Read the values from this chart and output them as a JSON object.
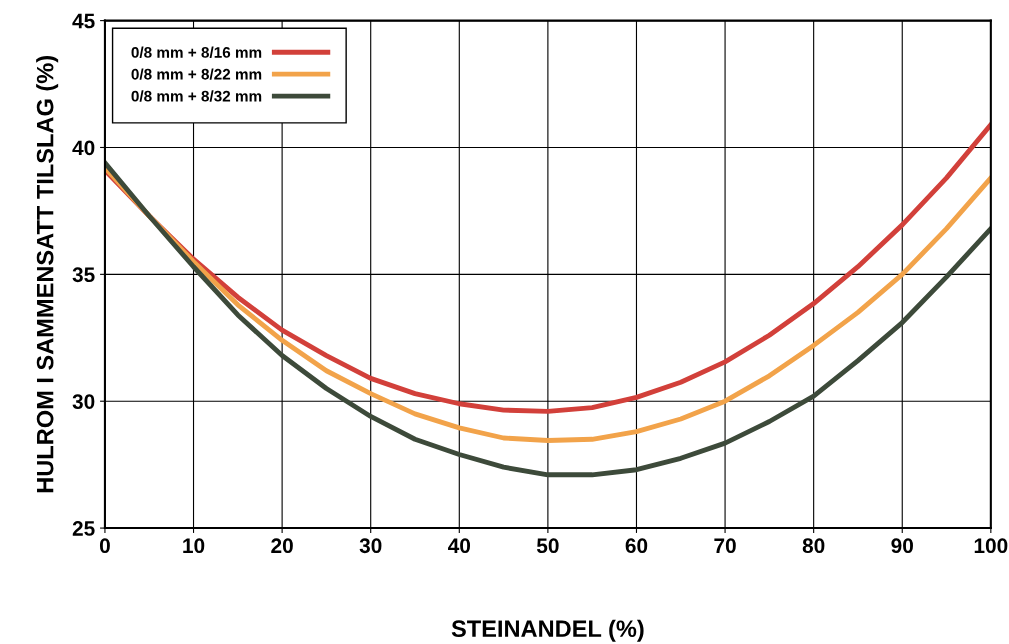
{
  "chart_data": {
    "type": "line",
    "xlabel": "STEINANDEL (%)",
    "ylabel": "HULROM I SAMMENSATT TILSLAG (%)",
    "x": [
      0,
      5,
      10,
      15,
      20,
      25,
      30,
      35,
      40,
      45,
      50,
      55,
      60,
      65,
      70,
      75,
      80,
      85,
      90,
      95,
      100
    ],
    "xlim": [
      0,
      100
    ],
    "xticks": [
      0,
      10,
      20,
      30,
      40,
      50,
      60,
      70,
      80,
      90,
      100
    ],
    "ylim": [
      25,
      45
    ],
    "yticks": [
      25,
      30,
      35,
      40,
      45
    ],
    "grid": true,
    "legend": "top left",
    "marker": "none",
    "line_style": "solid",
    "series": [
      {
        "name": "0/8 mm + 8/16 mm",
        "color": "#d2403a",
        "values": [
          39.1,
          37.3,
          35.6,
          34.1,
          32.8,
          31.8,
          30.9,
          30.3,
          29.9,
          29.65,
          29.6,
          29.75,
          30.15,
          30.75,
          31.55,
          32.6,
          33.85,
          35.3,
          36.95,
          38.8,
          40.9
        ]
      },
      {
        "name": "0/8 mm + 8/22 mm",
        "color": "#f2a34a",
        "values": [
          39.2,
          37.3,
          35.5,
          33.8,
          32.4,
          31.2,
          30.3,
          29.5,
          28.95,
          28.55,
          28.45,
          28.5,
          28.8,
          29.3,
          30.0,
          31.0,
          32.2,
          33.5,
          35.0,
          36.8,
          38.8
        ]
      },
      {
        "name": "0/8 mm + 8/32 mm",
        "color": "#3d4a3a",
        "values": [
          39.4,
          37.3,
          35.3,
          33.4,
          31.8,
          30.5,
          29.4,
          28.5,
          27.9,
          27.4,
          27.1,
          27.1,
          27.3,
          27.75,
          28.35,
          29.2,
          30.2,
          31.6,
          33.1,
          34.9,
          36.8
        ]
      }
    ]
  }
}
